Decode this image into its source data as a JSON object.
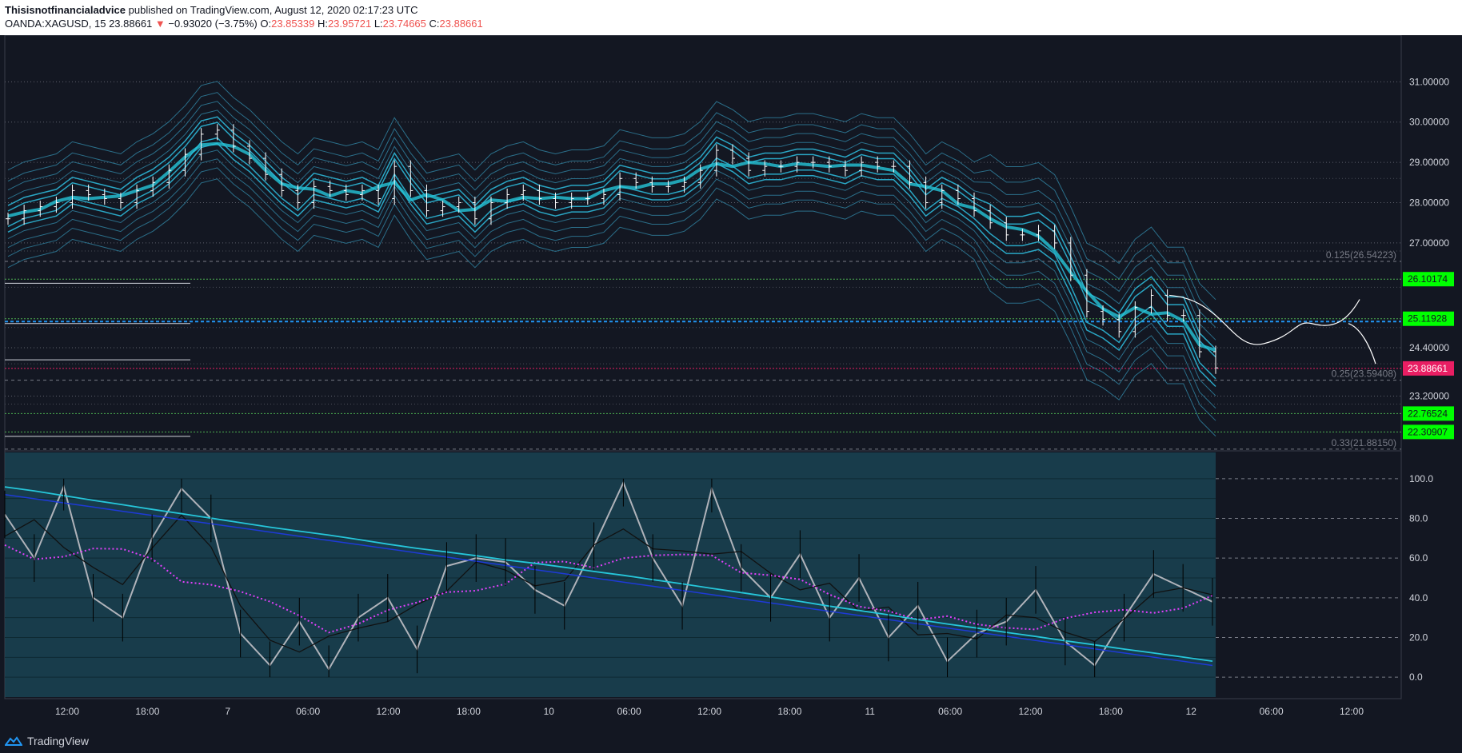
{
  "header": {
    "author": "Thisisnotfinancialadvice",
    "published": "published on TradingView.com, August 12, 2020 02:17:23 UTC",
    "symbol": "OANDA:XAGUSD, 15",
    "last": "23.88661",
    "arrow": "▼",
    "change": "−0.93020 (−3.75%)",
    "o_label": "O:",
    "o": "23.85339",
    "h_label": "H:",
    "h": "23.95721",
    "l_label": "L:",
    "l": "23.74665",
    "c_label": "C:",
    "c": "23.88661"
  },
  "footer": {
    "brand": "TradingView",
    "logo_icon": "tradingview-logo-icon"
  },
  "chart_data": [
    {
      "type": "line",
      "name": "price-panel",
      "y_ticks": [
        "31.00000",
        "30.00000",
        "29.00000",
        "28.00000",
        "27.00000",
        "24.40000",
        "23.20000"
      ],
      "y_tick_values": [
        31.0,
        30.0,
        29.0,
        28.0,
        27.0,
        24.4,
        23.2
      ],
      "ylim": [
        21.88,
        31.8
      ],
      "x_ticks": [
        "12:00",
        "18:00",
        "7",
        "06:00",
        "12:00",
        "18:00",
        "10",
        "06:00",
        "12:00",
        "18:00",
        "11",
        "06:00",
        "12:00",
        "18:00",
        "12",
        "06:00",
        "12:00"
      ],
      "price_labels": [
        {
          "value": 26.10174,
          "text": "26.10174",
          "color": "#00ff00",
          "text_color": "#131722"
        },
        {
          "value": 25.11928,
          "text": "25.11928",
          "color": "#00ff00",
          "text_color": "#131722"
        },
        {
          "value": 23.88661,
          "text": "23.88661",
          "color": "#e91e63",
          "text_color": "#ffffff"
        },
        {
          "value": 22.76524,
          "text": "22.76524",
          "color": "#00ff00",
          "text_color": "#131722"
        },
        {
          "value": 22.30907,
          "text": "22.30907",
          "color": "#00ff00",
          "text_color": "#131722"
        }
      ],
      "fib_labels": [
        {
          "text": "0.125(26.54223)",
          "value": 26.54223
        },
        {
          "text": "0.25(23.59408)",
          "value": 23.59408
        },
        {
          "text": "0.33(21.88150)",
          "value": 21.8815
        }
      ],
      "close_series": [
        27.6,
        27.8,
        27.9,
        28.0,
        28.3,
        28.2,
        28.1,
        28.0,
        28.3,
        28.5,
        28.8,
        29.2,
        29.7,
        29.8,
        29.4,
        29.1,
        28.7,
        28.3,
        28.0,
        28.4,
        28.3,
        28.2,
        28.3,
        28.1,
        28.9,
        28.3,
        27.8,
        27.9,
        28.0,
        27.6,
        28.0,
        28.2,
        28.3,
        28.1,
        28.0,
        28.1,
        28.1,
        28.2,
        28.6,
        28.5,
        28.4,
        28.4,
        28.5,
        28.8,
        29.3,
        29.1,
        28.8,
        28.9,
        28.9,
        29.0,
        29.0,
        28.9,
        28.8,
        29.0,
        28.9,
        28.9,
        28.5,
        28.0,
        28.3,
        28.1,
        27.8,
        27.5,
        27.2,
        27.2,
        27.3,
        27.0,
        26.2,
        25.3,
        25.1,
        24.8,
        25.4,
        25.7,
        25.2,
        25.2,
        24.3,
        23.9
      ]
    },
    {
      "type": "line",
      "name": "oscillator-panel",
      "y_ticks": [
        "100.0",
        "80.0",
        "60.0",
        "40.0",
        "20.0",
        "0.0"
      ],
      "y_tick_values": [
        100,
        80,
        60,
        40,
        20,
        0
      ],
      "ylim": [
        -10,
        110
      ],
      "stoch_series": [
        82,
        60,
        96,
        40,
        30,
        70,
        95,
        80,
        22,
        6,
        28,
        4,
        30,
        40,
        14,
        56,
        60,
        58,
        44,
        36,
        66,
        98,
        60,
        36,
        95,
        55,
        40,
        62,
        30,
        50,
        20,
        36,
        8,
        22,
        28,
        44,
        18,
        6,
        30,
        52,
        45,
        38
      ]
    }
  ]
}
